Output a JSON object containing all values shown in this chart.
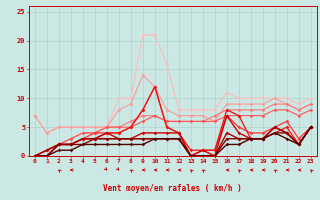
{
  "xlabel": "Vent moyen/en rafales ( km/h )",
  "bg_color": "#cce8e4",
  "grid_color": "#aad4d0",
  "xlim": [
    -0.5,
    23.5
  ],
  "ylim": [
    0,
    26
  ],
  "yticks": [
    0,
    5,
    10,
    15,
    20,
    25
  ],
  "series": [
    {
      "color": "#ffbbbb",
      "lw": 0.8,
      "y": [
        7,
        4,
        5,
        5,
        5,
        5,
        5,
        10,
        10,
        21,
        21,
        16,
        8,
        8,
        8,
        8,
        11,
        10,
        10,
        10,
        10,
        10,
        9,
        10
      ]
    },
    {
      "color": "#ff9999",
      "lw": 0.8,
      "y": [
        7,
        4,
        5,
        5,
        5,
        5,
        5,
        8,
        9,
        14,
        12,
        8,
        7,
        7,
        7,
        6,
        9,
        9,
        9,
        9,
        10,
        9,
        8,
        9
      ]
    },
    {
      "color": "#ff7777",
      "lw": 0.8,
      "y": [
        0,
        0,
        2,
        3,
        4,
        4,
        5,
        5,
        6,
        7,
        7,
        6,
        6,
        6,
        6,
        7,
        8,
        8,
        8,
        8,
        9,
        9,
        8,
        9
      ]
    },
    {
      "color": "#ff5555",
      "lw": 0.8,
      "y": [
        0,
        0,
        2,
        3,
        4,
        4,
        5,
        5,
        5,
        6,
        7,
        6,
        6,
        6,
        6,
        6,
        7,
        7,
        7,
        7,
        8,
        8,
        7,
        8
      ]
    },
    {
      "color": "#ff3333",
      "lw": 0.9,
      "y": [
        0,
        0,
        2,
        2,
        3,
        4,
        4,
        4,
        5,
        8,
        12,
        5,
        4,
        0,
        1,
        1,
        7,
        5,
        4,
        4,
        5,
        6,
        3,
        5
      ]
    },
    {
      "color": "#ee1111",
      "lw": 0.9,
      "y": [
        0,
        0,
        2,
        2,
        3,
        3,
        4,
        4,
        5,
        8,
        12,
        5,
        4,
        1,
        1,
        1,
        8,
        7,
        3,
        3,
        4,
        5,
        2,
        5
      ]
    },
    {
      "color": "#cc0000",
      "lw": 1.0,
      "y": [
        0,
        1,
        2,
        2,
        3,
        3,
        4,
        3,
        3,
        4,
        4,
        4,
        4,
        0,
        1,
        0,
        7,
        4,
        3,
        3,
        5,
        4,
        2,
        5
      ]
    },
    {
      "color": "#aa0000",
      "lw": 1.0,
      "y": [
        0,
        1,
        2,
        2,
        3,
        3,
        3,
        3,
        3,
        3,
        3,
        3,
        3,
        0,
        0,
        0,
        4,
        3,
        3,
        3,
        5,
        4,
        2,
        5
      ]
    },
    {
      "color": "#880000",
      "lw": 1.0,
      "y": [
        0,
        0,
        2,
        2,
        2,
        3,
        3,
        3,
        3,
        3,
        3,
        3,
        3,
        0,
        0,
        0,
        3,
        3,
        3,
        3,
        4,
        4,
        2,
        5
      ]
    },
    {
      "color": "#550000",
      "lw": 1.0,
      "y": [
        0,
        0,
        1,
        1,
        2,
        2,
        2,
        2,
        2,
        2,
        3,
        3,
        3,
        0,
        0,
        0,
        2,
        2,
        3,
        3,
        4,
        3,
        2,
        5
      ]
    }
  ],
  "wind_arrows_x": [
    2,
    3,
    6,
    7,
    8,
    9,
    10,
    11,
    12,
    13,
    14,
    16,
    17,
    18,
    19,
    20,
    21,
    22,
    23
  ],
  "wind_arrows_deg": [
    225,
    270,
    45,
    45,
    225,
    270,
    270,
    270,
    270,
    225,
    225,
    270,
    225,
    270,
    270,
    225,
    270,
    270,
    225
  ]
}
